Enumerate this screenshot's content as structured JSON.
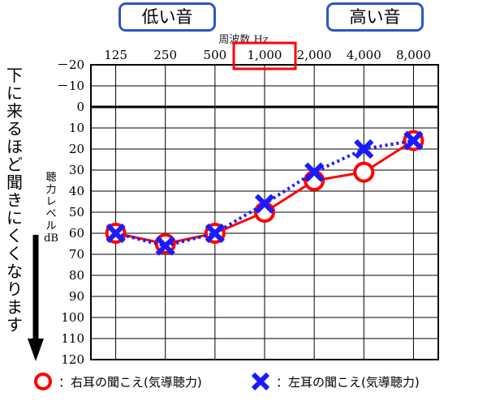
{
  "header": {
    "low_label": "低い音",
    "high_label": "高い音"
  },
  "side_note": "下に来るほど聞きにくくなります",
  "legend": {
    "right": "：右耳の聞こえ(気導聴力)",
    "left": "：左耳の聞こえ(気導聴力)"
  },
  "colors": {
    "right": "#ff0000",
    "left": "#1a1aff",
    "box_border": "#2f55c8",
    "highlight": "#ff0000"
  },
  "chart_data": {
    "type": "line",
    "title": "",
    "xlabel": "周波数 Hz",
    "ylabel": "聴力レベル dB",
    "categories": [
      "125",
      "250",
      "500",
      "1,000",
      "2,000",
      "4,000",
      "8,000"
    ],
    "ylim": [
      -20,
      120
    ],
    "y_ticks": [
      "－20",
      "－10",
      "0",
      "10",
      "20",
      "30",
      "40",
      "50",
      "60",
      "70",
      "80",
      "90",
      "100",
      "110",
      "120"
    ],
    "y_tick_values": [
      -20,
      -10,
      0,
      10,
      20,
      30,
      40,
      50,
      60,
      70,
      80,
      90,
      100,
      110,
      120
    ],
    "highlighted_category": "1,000",
    "grid": true,
    "series": [
      {
        "name": "右耳の聞こえ(気導聴力)",
        "marker": "circle",
        "line": "solid",
        "values": [
          60,
          65,
          60,
          50,
          35,
          31,
          16
        ]
      },
      {
        "name": "左耳の聞こえ(気導聴力)",
        "marker": "x",
        "line": "dotted",
        "values": [
          60,
          66,
          60,
          46,
          31,
          20,
          16
        ]
      }
    ]
  }
}
